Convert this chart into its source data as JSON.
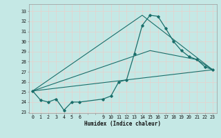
{
  "xlabel": "Humidex (Indice chaleur)",
  "bg_color": "#c5e8e5",
  "grid_color": "#b0d8d4",
  "line_color": "#1a6e6a",
  "xlim": [
    -0.5,
    23.5
  ],
  "ylim": [
    22.9,
    33.7
  ],
  "xticks": [
    0,
    1,
    2,
    3,
    4,
    5,
    6,
    7,
    8,
    9,
    10,
    11,
    12,
    13,
    14,
    15,
    16,
    17,
    18,
    19,
    20,
    21,
    22,
    23
  ],
  "xtick_labels": [
    "0",
    "1",
    "2",
    "3",
    "4",
    "5",
    "6",
    "",
    "",
    "9",
    "10",
    "11",
    "12",
    "13",
    "14",
    "15",
    "16",
    "17",
    "18",
    "19",
    "20",
    "21",
    "22",
    "23"
  ],
  "yticks": [
    23,
    24,
    25,
    26,
    27,
    28,
    29,
    30,
    31,
    32,
    33
  ],
  "line1_x": [
    0,
    1,
    2,
    3,
    4,
    5,
    6,
    9,
    10,
    11,
    12,
    13,
    14,
    15,
    16,
    17,
    18,
    19,
    20,
    21,
    22,
    23
  ],
  "line1_y": [
    25.1,
    24.2,
    24.0,
    24.3,
    23.2,
    24.0,
    24.0,
    24.3,
    24.6,
    26.0,
    26.2,
    28.8,
    31.6,
    32.6,
    32.5,
    31.3,
    30.0,
    29.1,
    28.5,
    28.2,
    27.5,
    27.2
  ],
  "line2_x": [
    0,
    23
  ],
  "line2_y": [
    25.1,
    27.2
  ],
  "line3_x": [
    0,
    14,
    23
  ],
  "line3_y": [
    25.1,
    32.6,
    27.2
  ],
  "line4_x": [
    0,
    15,
    21,
    23
  ],
  "line4_y": [
    25.1,
    29.1,
    28.2,
    27.2
  ]
}
